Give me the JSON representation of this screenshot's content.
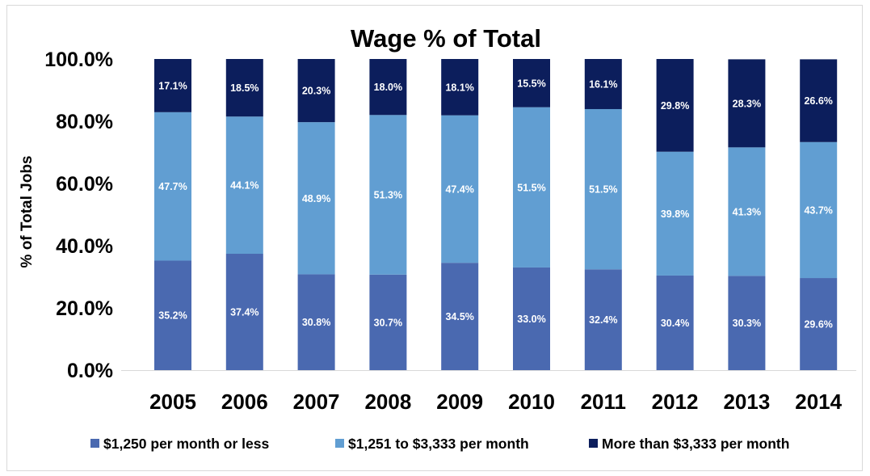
{
  "chart_data": {
    "type": "bar",
    "stacked": true,
    "title": "Wage % of Total",
    "xlabel": "",
    "ylabel": "% of Total Jobs",
    "ylim": [
      0,
      100
    ],
    "yticks": [
      "0.0%",
      "20.0%",
      "40.0%",
      "60.0%",
      "80.0%",
      "100.0%"
    ],
    "categories": [
      "2005",
      "2006",
      "2007",
      "2008",
      "2009",
      "2010",
      "2011",
      "2012",
      "2013",
      "2014"
    ],
    "series": [
      {
        "name": "$1,250 per month or less",
        "color": "#4a69b0",
        "label_color": "#ffffff",
        "values": [
          35.2,
          37.4,
          30.8,
          30.7,
          34.5,
          33.0,
          32.4,
          30.4,
          30.3,
          29.6
        ],
        "labels": [
          "35.2%",
          "37.4%",
          "30.8%",
          "30.7%",
          "34.5%",
          "33.0%",
          "32.4%",
          "30.4%",
          "30.3%",
          "29.6%"
        ]
      },
      {
        "name": "$1,251 to $3,333 per month",
        "color": "#619ed2",
        "label_color": "#ffffff",
        "values": [
          47.7,
          44.1,
          48.9,
          51.3,
          47.4,
          51.5,
          51.5,
          39.8,
          41.3,
          43.7
        ],
        "labels": [
          "47.7%",
          "44.1%",
          "48.9%",
          "51.3%",
          "47.4%",
          "51.5%",
          "51.5%",
          "39.8%",
          "41.3%",
          "43.7%"
        ]
      },
      {
        "name": "More than $3,333 per month",
        "color": "#0c1e5c",
        "label_color": "#ffffff",
        "values": [
          17.1,
          18.5,
          20.3,
          18.0,
          18.1,
          15.5,
          16.1,
          29.8,
          28.3,
          26.6
        ],
        "labels": [
          "17.1%",
          "18.5%",
          "20.3%",
          "18.0%",
          "18.1%",
          "15.5%",
          "16.1%",
          "29.8%",
          "28.3%",
          "26.6%"
        ]
      }
    ],
    "legend": "bottom",
    "grid": false
  }
}
